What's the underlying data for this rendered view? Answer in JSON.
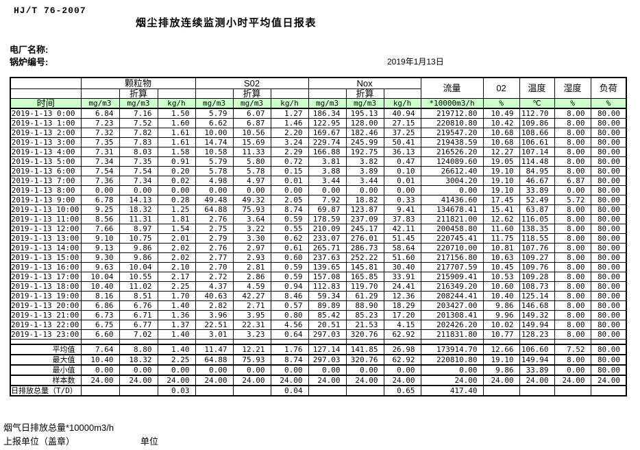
{
  "header": {
    "standard_code": "HJ/T  76-2007",
    "title": "烟尘排放连续监测小时平均值日报表",
    "plant_name_label": "电厂名称:",
    "boiler_no_label": "锅炉编号:",
    "date": "2019年1月13日"
  },
  "colors": {
    "header_row_green": "#ccffcc",
    "border": "#000000"
  },
  "table": {
    "time_header": "时间",
    "conversion_label": "折算",
    "groups": [
      "颗粒物",
      "S02",
      "Nox"
    ],
    "single_columns": [
      "流量",
      "02",
      "温度",
      "湿度",
      "负荷"
    ],
    "units": [
      "mg/m3",
      "mg/m3",
      "kg/h",
      "mg/m3",
      "mg/m3",
      "kg/h",
      "mg/m3",
      "mg/m3",
      "kg/h",
      "*10000m3/h",
      "%",
      "℃",
      "%",
      "%"
    ],
    "rows": [
      {
        "time": "2019-1-13 0:00",
        "values": [
          "6.84",
          "7.16",
          "1.50",
          "5.79",
          "6.07",
          "1.27",
          "186.34",
          "195.13",
          "40.94",
          "219712.80",
          "10.49",
          "112.70",
          "8.00",
          "80.00"
        ]
      },
      {
        "time": "2019-1-13 1:00",
        "values": [
          "7.23",
          "7.52",
          "1.60",
          "6.62",
          "6.87",
          "1.46",
          "122.95",
          "128.00",
          "27.15",
          "220810.80",
          "10.42",
          "109.86",
          "8.00",
          "80.00"
        ]
      },
      {
        "time": "2019-1-13 2:00",
        "values": [
          "7.32",
          "7.82",
          "1.61",
          "10.00",
          "10.56",
          "2.20",
          "169.67",
          "182.46",
          "37.25",
          "219547.20",
          "10.68",
          "108.66",
          "8.00",
          "80.00"
        ]
      },
      {
        "time": "2019-1-13 3:00",
        "values": [
          "7.35",
          "7.83",
          "1.61",
          "14.74",
          "15.69",
          "3.24",
          "229.74",
          "245.99",
          "50.41",
          "219438.59",
          "10.68",
          "106.61",
          "8.00",
          "80.00"
        ]
      },
      {
        "time": "2019-1-13 4:00",
        "values": [
          "7.31",
          "8.03",
          "1.58",
          "10.58",
          "11.33",
          "2.29",
          "166.88",
          "192.75",
          "36.13",
          "216526.20",
          "12.27",
          "107.14",
          "8.00",
          "80.00"
        ]
      },
      {
        "time": "2019-1-13 5:00",
        "values": [
          "7.34",
          "7.35",
          "0.91",
          "5.79",
          "5.80",
          "0.72",
          "3.81",
          "3.82",
          "0.47",
          "124089.60",
          "19.05",
          "114.48",
          "8.00",
          "80.00"
        ]
      },
      {
        "time": "2019-1-13 6:00",
        "values": [
          "7.54",
          "7.54",
          "0.20",
          "5.78",
          "5.78",
          "0.15",
          "3.88",
          "3.89",
          "0.10",
          "26612.40",
          "19.10",
          "84.95",
          "8.00",
          "80.00"
        ]
      },
      {
        "time": "2019-1-13 7:00",
        "values": [
          "7.36",
          "7.34",
          "0.02",
          "4.98",
          "4.97",
          "0.01",
          "3.44",
          "3.44",
          "0.01",
          "3004.20",
          "19.10",
          "46.67",
          "6.87",
          "80.00"
        ]
      },
      {
        "time": "2019-1-13 8:00",
        "values": [
          "0.00",
          "0.00",
          "0.00",
          "0.00",
          "0.00",
          "0.00",
          "0.00",
          "0.00",
          "0.00",
          "0.00",
          "19.10",
          "33.89",
          "0.00",
          "80.00"
        ]
      },
      {
        "time": "2019-1-13 9:00",
        "values": [
          "6.78",
          "14.13",
          "0.28",
          "49.48",
          "49.32",
          "2.05",
          "7.92",
          "18.82",
          "0.33",
          "41436.60",
          "17.45",
          "52.49",
          "5.72",
          "80.00"
        ]
      },
      {
        "time": "2019-1-13 10:00",
        "values": [
          "9.25",
          "18.32",
          "1.25",
          "64.88",
          "75.93",
          "8.74",
          "69.87",
          "123.87",
          "9.41",
          "134678.41",
          "15.41",
          "63.87",
          "8.00",
          "80.00"
        ]
      },
      {
        "time": "2019-1-13 11:00",
        "values": [
          "8.56",
          "11.31",
          "1.81",
          "2.76",
          "3.64",
          "0.59",
          "178.59",
          "237.09",
          "37.83",
          "211821.00",
          "12.62",
          "116.05",
          "8.00",
          "80.00"
        ]
      },
      {
        "time": "2019-1-13 12:00",
        "values": [
          "7.66",
          "8.97",
          "1.54",
          "2.75",
          "3.22",
          "0.55",
          "210.09",
          "245.17",
          "42.11",
          "200458.80",
          "11.60",
          "138.35",
          "8.00",
          "80.00"
        ]
      },
      {
        "time": "2019-1-13 13:00",
        "values": [
          "9.10",
          "10.75",
          "2.01",
          "2.79",
          "3.30",
          "0.62",
          "233.07",
          "276.01",
          "51.45",
          "220745.41",
          "11.75",
          "118.55",
          "8.00",
          "80.00"
        ]
      },
      {
        "time": "2019-1-13 14:00",
        "values": [
          "9.13",
          "9.86",
          "2.02",
          "2.76",
          "2.97",
          "0.61",
          "265.71",
          "286.73",
          "58.64",
          "220710.00",
          "10.81",
          "107.76",
          "8.00",
          "80.00"
        ]
      },
      {
        "time": "2019-1-13 15:00",
        "values": [
          "9.30",
          "9.86",
          "2.02",
          "2.77",
          "2.93",
          "0.60",
          "237.63",
          "252.22",
          "51.60",
          "217156.80",
          "10.63",
          "109.27",
          "8.00",
          "80.00"
        ]
      },
      {
        "time": "2019-1-13 16:00",
        "values": [
          "9.63",
          "10.04",
          "2.10",
          "2.70",
          "2.81",
          "0.59",
          "139.65",
          "145.81",
          "30.40",
          "217707.59",
          "10.45",
          "109.76",
          "8.00",
          "80.00"
        ]
      },
      {
        "time": "2019-1-13 17:00",
        "values": [
          "10.04",
          "10.55",
          "2.17",
          "2.72",
          "2.86",
          "0.59",
          "157.08",
          "165.85",
          "33.91",
          "215909.41",
          "10.53",
          "109.28",
          "8.00",
          "80.00"
        ]
      },
      {
        "time": "2019-1-13 18:00",
        "values": [
          "10.40",
          "11.02",
          "2.25",
          "4.37",
          "4.59",
          "0.94",
          "112.83",
          "119.70",
          "24.41",
          "216349.20",
          "10.60",
          "108.73",
          "8.00",
          "80.00"
        ]
      },
      {
        "time": "2019-1-13 19:00",
        "values": [
          "8.16",
          "8.51",
          "1.70",
          "40.63",
          "42.27",
          "8.46",
          "59.34",
          "61.29",
          "12.36",
          "208244.41",
          "10.40",
          "125.14",
          "8.00",
          "80.00"
        ]
      },
      {
        "time": "2019-1-13 20:00",
        "values": [
          "6.86",
          "6.76",
          "1.40",
          "2.82",
          "2.71",
          "0.57",
          "89.89",
          "88.90",
          "18.29",
          "203427.00",
          "9.86",
          "146.68",
          "8.00",
          "80.00"
        ]
      },
      {
        "time": "2019-1-13 21:00",
        "values": [
          "6.73",
          "6.71",
          "1.36",
          "3.96",
          "3.95",
          "0.80",
          "85.42",
          "85.23",
          "17.20",
          "201308.41",
          "9.96",
          "149.32",
          "8.00",
          "80.00"
        ]
      },
      {
        "time": "2019-1-13 22:00",
        "values": [
          "6.75",
          "6.77",
          "1.37",
          "22.51",
          "22.31",
          "4.56",
          "20.51",
          "21.53",
          "4.15",
          "202426.20",
          "10.02",
          "149.94",
          "8.00",
          "80.00"
        ]
      },
      {
        "time": "2019-1-13 23:00",
        "values": [
          "6.60",
          "7.02",
          "1.40",
          "3.01",
          "3.23",
          "0.64",
          "297.03",
          "320.76",
          "62.92",
          "211831.80",
          "10.77",
          "128.23",
          "8.00",
          "80.00"
        ]
      }
    ],
    "summary_rows": [
      {
        "label": "平均值",
        "values": [
          "7.64",
          "8.80",
          "1.40",
          "11.47",
          "12.21",
          "1.76",
          "127.14",
          "141.85",
          "26.98",
          "173914.70",
          "12.66",
          "106.60",
          "7.52",
          "80.00"
        ]
      },
      {
        "label": "最大值",
        "values": [
          "10.40",
          "18.32",
          "2.25",
          "64.88",
          "75.93",
          "8.74",
          "297.03",
          "320.76",
          "62.92",
          "220810.80",
          "19.10",
          "149.94",
          "8.00",
          "80.00"
        ]
      },
      {
        "label": "最小值",
        "values": [
          "0.00",
          "0.00",
          "0.00",
          "0.00",
          "0.00",
          "0.00",
          "0.00",
          "0.00",
          "0.00",
          "0.00",
          "9.86",
          "33.89",
          "0.00",
          "80.00"
        ]
      },
      {
        "label": "样本数",
        "values": [
          "24.00",
          "24.00",
          "24.00",
          "24.00",
          "24.00",
          "24.00",
          "24.00",
          "24.00",
          "24.00",
          "24.00",
          "24.00",
          "24.00",
          "24.00",
          "24.00"
        ]
      },
      {
        "label": "日排放总量（T/D）",
        "values": [
          "",
          "",
          "0.03",
          "",
          "",
          "0.04",
          "",
          "",
          "0.65",
          "417.40",
          "",
          "",
          "",
          ""
        ]
      }
    ]
  },
  "footer": {
    "flue_gas_total": "烟气日排放总量*10000m3/h",
    "report_unit_label": "上报单位（盖章）",
    "unit_label": "单位"
  }
}
